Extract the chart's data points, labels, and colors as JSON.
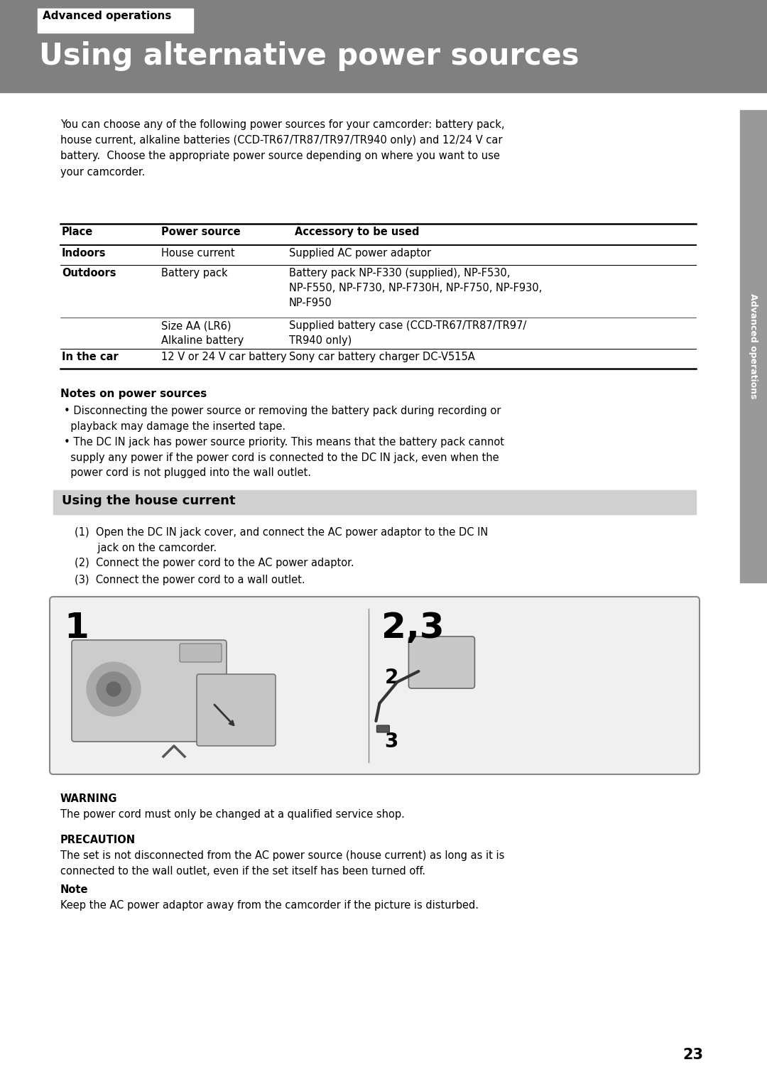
{
  "bg_color": "#ffffff",
  "header_bg": "#808080",
  "header_label_bg": "#ffffff",
  "header_label_text": "Advanced operations",
  "header_title": "Using alternative power sources",
  "header_title_color": "#ffffff",
  "intro_text": "You can choose any of the following power sources for your camcorder: battery pack,\nhouse current, alkaline batteries (CCD-TR67/TR87/TR97/TR940 only) and 12/24 V car\nbattery.  Choose the appropriate power source depending on where you want to use\nyour camcorder.",
  "table_headers": [
    "Place",
    "Power source",
    "Accessory to be used"
  ],
  "table_rows": [
    [
      "Indoors",
      "House current",
      "Supplied AC power adaptor"
    ],
    [
      "Outdoors",
      "Battery pack",
      "Battery pack NP-F330 (supplied), NP-F530,\nNP-F550, NP-F730, NP-F730H, NP-F750, NP-F930,\nNP-F950"
    ],
    [
      "",
      "Size AA (LR6)\nAlkaline battery",
      "Supplied battery case (CCD-TR67/TR87/TR97/\nTR940 only)"
    ],
    [
      "In the car",
      "12 V or 24 V car battery",
      "Sony car battery charger DC-V515A"
    ]
  ],
  "notes_title": "Notes on power sources",
  "notes_bullets": [
    "Disconnecting the power source or removing the battery pack during recording or\n  playback may damage the inserted tape.",
    "The DC IN jack has power source priority. This means that the battery pack cannot\n  supply any power if the power cord is connected to the DC IN jack, even when the\n  power cord is not plugged into the wall outlet."
  ],
  "section2_title": "Using the house current",
  "section2_bg": "#d0d0d0",
  "steps": [
    "(1)  Open the DC IN jack cover, and connect the AC power adaptor to the DC IN\n       jack on the camcorder.",
    "(2)  Connect the power cord to the AC power adaptor.",
    "(3)  Connect the power cord to a wall outlet."
  ],
  "diagram_bg": "#f0f0f0",
  "diagram_border": "#888888",
  "warning_title": "WARNING",
  "warning_text": "The power cord must only be changed at a qualified service shop.",
  "precaution_title": "PRECAUTION",
  "precaution_text": "The set is not disconnected from the AC power source (house current) as long as it is\nconnected to the wall outlet, even if the set itself has been turned off.",
  "note_title": "Note",
  "note_text": "Keep the AC power adaptor away from the camcorder if the picture is disturbed.",
  "page_number": "23",
  "sidebar_text": "Advanced operations",
  "sidebar_bg": "#999999"
}
